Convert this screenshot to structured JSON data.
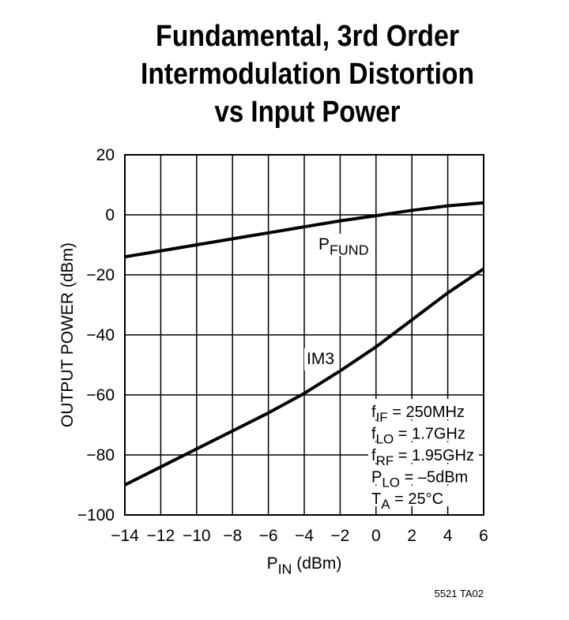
{
  "chart_data": {
    "type": "line",
    "title": [
      "Fundamental, 3rd Order",
      "Intermodulation Distortion",
      "vs Input Power"
    ],
    "x_label": {
      "main": "P",
      "sub": "IN",
      "rest": " (dBm)"
    },
    "y_label": "OUTPUT POWER (dBm)",
    "x": [
      -14,
      -12,
      -10,
      -8,
      -6,
      -4,
      -2,
      0,
      2,
      4,
      6
    ],
    "series": [
      {
        "name": {
          "main": "P",
          "sub": "FUND"
        },
        "color": "#000000",
        "values": [
          -14,
          -12,
          -10,
          -8,
          -6,
          -4,
          -2,
          -0.3,
          1.5,
          3,
          4
        ]
      },
      {
        "name": {
          "main": "IM3"
        },
        "color": "#000000",
        "values": [
          -90,
          -84,
          -78,
          -72,
          -66,
          -59.5,
          -52,
          -44,
          -35,
          -26,
          -18
        ]
      }
    ],
    "xlim": [
      -14,
      6
    ],
    "ylim": [
      -100,
      20
    ],
    "xticks": [
      {
        "value": -14,
        "label": "−14"
      },
      {
        "value": -12,
        "label": "−12"
      },
      {
        "value": -10,
        "label": "−10"
      },
      {
        "value": -8,
        "label": "−8"
      },
      {
        "value": -6,
        "label": "−6"
      },
      {
        "value": -4,
        "label": "−4"
      },
      {
        "value": -2,
        "label": "−2"
      },
      0,
      2,
      4,
      6
    ],
    "yticks": [
      {
        "value": -100,
        "label": "−100"
      },
      {
        "value": -80,
        "label": "−80"
      },
      {
        "value": -60,
        "label": "−60"
      },
      {
        "value": -40,
        "label": "−40"
      },
      {
        "value": -20,
        "label": "−20"
      },
      0,
      20
    ],
    "grid": true,
    "annotations": [
      {
        "main": "f",
        "sub": "IF",
        "rest": " = 250MHz"
      },
      {
        "main": "f",
        "sub": "LO",
        "rest": " = 1.7GHz"
      },
      {
        "main": "f",
        "sub": "RF",
        "rest": " = 1.95GHz"
      },
      {
        "main": "P",
        "sub": "LO",
        "rest": " = –5dBm"
      },
      {
        "main": "T",
        "sub": "A",
        "rest": " = 25°C"
      }
    ],
    "footnote": "5521 TA02"
  }
}
